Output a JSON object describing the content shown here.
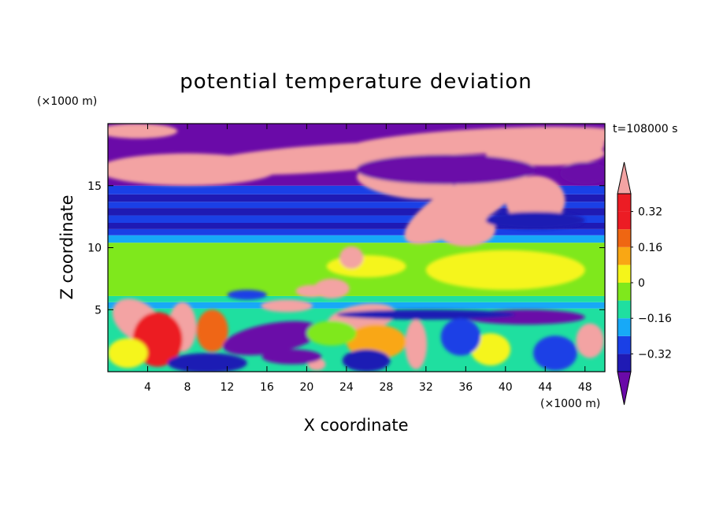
{
  "chart_data": {
    "type": "heatmap",
    "title": "potential temperature deviation",
    "xlabel": "X coordinate",
    "ylabel": "Z coordinate",
    "x_unit": "(×1000 m)",
    "y_unit": "(×1000 m)",
    "time_label": "t=108000 s",
    "xlim": [
      0,
      50
    ],
    "ylim": [
      0,
      20
    ],
    "x_ticks": [
      4,
      8,
      12,
      16,
      20,
      24,
      28,
      32,
      36,
      40,
      44,
      48
    ],
    "y_ticks": [
      5,
      10,
      15
    ],
    "colorbar": {
      "tick_labels": [
        "0.32",
        "0.16",
        "0",
        "−0.16",
        "−0.32"
      ],
      "tick_values": [
        0.32,
        0.16,
        0,
        -0.16,
        -0.32
      ],
      "levels": [
        -0.4,
        -0.32,
        -0.24,
        -0.16,
        -0.08,
        0,
        0.08,
        0.16,
        0.24,
        0.32,
        0.4
      ],
      "colors": [
        "#6a0aa8",
        "#1f1ab4",
        "#1a40e6",
        "#17a9f7",
        "#1fdfa0",
        "#7fe81c",
        "#f5f51a",
        "#f9a714",
        "#ef6612",
        "#ec1c24",
        "#f3a3a3"
      ],
      "extend": "both"
    },
    "bands": [
      {
        "z_from": 0,
        "z_to": 5,
        "pattern": "mixed eddies",
        "level_index": 4
      },
      {
        "z_from": 5,
        "z_to": 6,
        "pattern": "cyan band",
        "level_index": 3
      },
      {
        "z_from": 6,
        "z_to": 10.5,
        "pattern": "green layer",
        "level_index": 5
      },
      {
        "z_from": 10.5,
        "z_to": 15,
        "pattern": "blue stripes",
        "level_index": 1
      },
      {
        "z_from": 15,
        "z_to": 20,
        "pattern": "purple and pink",
        "level_index": 0
      }
    ]
  }
}
